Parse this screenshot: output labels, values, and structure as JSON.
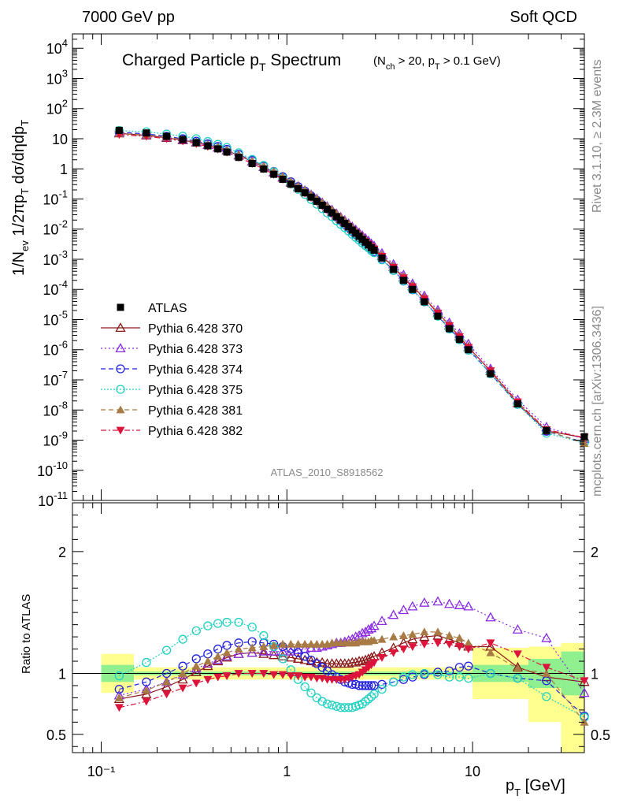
{
  "header": {
    "energy": "7000 GeV pp",
    "process": "Soft QCD",
    "rivet": "Rivet 3.1.10, ≥ 2.3M events",
    "site": "mcplots.cern.ch [arXiv:1306.3436]",
    "analysis": "ATLAS_2010_S8918562"
  },
  "chart_data": [
    {
      "type": "line",
      "title": "Charged Particle pT Spectrum",
      "subtitle": "(Nch > 20, pT > 0.1 GeV)",
      "ylabel": "1/Nev 1/2πpT dσ/dηdpT",
      "xscale": "log",
      "yscale": "log",
      "xlim": [
        0.07,
        40
      ],
      "ylim": [
        1e-11,
        30000
      ],
      "x": [
        0.125,
        0.175,
        0.225,
        0.275,
        0.325,
        0.375,
        0.425,
        0.475,
        0.55,
        0.65,
        0.75,
        0.85,
        0.95,
        1.05,
        1.15,
        1.25,
        1.35,
        1.45,
        1.55,
        1.65,
        1.75,
        1.85,
        1.95,
        2.05,
        2.15,
        2.25,
        2.35,
        2.45,
        2.55,
        2.65,
        2.75,
        2.85,
        2.95,
        3.25,
        3.75,
        4.25,
        4.75,
        5.5,
        6.5,
        7.5,
        8.5,
        9.5,
        12.5,
        17.5,
        25,
        40
      ],
      "series": [
        {
          "name": "ATLAS",
          "color": "#000000",
          "marker": "square",
          "values": [
            19,
            15.5,
            12,
            9.4,
            7.4,
            5.8,
            4.6,
            3.6,
            2.4,
            1.5,
            0.99,
            0.66,
            0.45,
            0.31,
            0.22,
            0.16,
            0.115,
            0.084,
            0.062,
            0.046,
            0.035,
            0.026,
            0.02,
            0.0155,
            0.012,
            0.0093,
            0.0073,
            0.0058,
            0.0046,
            0.0037,
            0.003,
            0.0024,
            0.002,
            0.0011,
            0.00046,
            0.0002,
            0.0001,
            3.9e-05,
            1.3e-05,
            5e-06,
            2.2e-06,
            1e-06,
            1.6e-07,
            1.6e-08,
            2.1e-09,
            1.3e-09
          ]
        },
        {
          "name": "Pythia 6.428 370",
          "color": "#8b1a1a",
          "marker": "triangle-open",
          "dash": "",
          "ratio": [
            0.79,
            0.83,
            0.89,
            0.95,
            1.01,
            1.06,
            1.1,
            1.13,
            1.16,
            1.17,
            1.16,
            1.15,
            1.14,
            1.13,
            1.12,
            1.11,
            1.1,
            1.09,
            1.09,
            1.08,
            1.08,
            1.08,
            1.08,
            1.08,
            1.08,
            1.09,
            1.09,
            1.1,
            1.1,
            1.11,
            1.12,
            1.13,
            1.14,
            1.17,
            1.21,
            1.25,
            1.28,
            1.3,
            1.31,
            1.28,
            1.25,
            1.22,
            1.22,
            1.05,
            0.97,
            0.93
          ]
        },
        {
          "name": "Pythia 6.428 373",
          "color": "#8a2be2",
          "marker": "triangle-open",
          "dash": "2,3",
          "ratio": [
            0.82,
            0.87,
            0.93,
            0.99,
            1.04,
            1.08,
            1.11,
            1.14,
            1.16,
            1.17,
            1.18,
            1.18,
            1.18,
            1.18,
            1.19,
            1.2,
            1.21,
            1.21,
            1.22,
            1.23,
            1.24,
            1.25,
            1.25,
            1.26,
            1.27,
            1.28,
            1.3,
            1.31,
            1.33,
            1.34,
            1.36,
            1.37,
            1.39,
            1.43,
            1.48,
            1.52,
            1.55,
            1.58,
            1.59,
            1.57,
            1.56,
            1.55,
            1.46,
            1.36,
            1.29,
            0.84
          ]
        },
        {
          "name": "Pythia 6.428 374",
          "color": "#2222dd",
          "marker": "circle-open",
          "dash": "6,4",
          "ratio": [
            0.87,
            0.93,
            1.0,
            1.06,
            1.12,
            1.16,
            1.2,
            1.23,
            1.25,
            1.26,
            1.25,
            1.24,
            1.22,
            1.2,
            1.17,
            1.14,
            1.11,
            1.08,
            1.05,
            1.02,
            0.99,
            0.97,
            0.95,
            0.93,
            0.92,
            0.91,
            0.91,
            0.9,
            0.9,
            0.9,
            0.9,
            0.9,
            0.9,
            0.91,
            0.93,
            0.95,
            0.97,
            0.99,
            1.01,
            1.02,
            1.05,
            1.06,
            1.0,
            0.96,
            0.94,
            0.65
          ]
        },
        {
          "name": "Pythia 6.428 375",
          "color": "#20d0c0",
          "marker": "circle-open",
          "dash": "2,2",
          "ratio": [
            0.98,
            1.09,
            1.19,
            1.28,
            1.35,
            1.39,
            1.41,
            1.42,
            1.42,
            1.38,
            1.31,
            1.22,
            1.12,
            1.03,
            0.95,
            0.89,
            0.84,
            0.8,
            0.77,
            0.75,
            0.74,
            0.73,
            0.72,
            0.72,
            0.72,
            0.72,
            0.73,
            0.74,
            0.75,
            0.77,
            0.79,
            0.81,
            0.83,
            0.87,
            0.93,
            0.97,
            0.99,
            1.0,
            0.99,
            0.97,
            0.97,
            0.96,
            1.0,
            0.96,
            0.81,
            0.64
          ]
        },
        {
          "name": "Pythia 6.428 381",
          "color": "#a87a44",
          "marker": "triangle-filled",
          "dash": "6,4",
          "ratio": [
            0.8,
            0.86,
            0.93,
            1.0,
            1.06,
            1.1,
            1.14,
            1.17,
            1.2,
            1.21,
            1.22,
            1.23,
            1.24,
            1.24,
            1.24,
            1.24,
            1.24,
            1.24,
            1.24,
            1.24,
            1.25,
            1.25,
            1.25,
            1.25,
            1.25,
            1.25,
            1.25,
            1.26,
            1.26,
            1.26,
            1.26,
            1.27,
            1.27,
            1.28,
            1.3,
            1.31,
            1.32,
            1.34,
            1.34,
            1.31,
            1.29,
            1.25,
            1.17,
            1.04,
            1.0,
            0.6
          ]
        },
        {
          "name": "Pythia 6.428 382",
          "color": "#dc143c",
          "marker": "triangle-down-filled",
          "dash": "7,3,2,3",
          "ratio": [
            0.72,
            0.77,
            0.83,
            0.88,
            0.92,
            0.95,
            0.97,
            0.98,
            1.0,
            1.0,
            1.0,
            0.99,
            0.99,
            0.98,
            0.98,
            0.97,
            0.97,
            0.96,
            0.96,
            0.95,
            0.95,
            0.95,
            0.95,
            0.95,
            0.96,
            0.97,
            0.98,
            0.99,
            1.01,
            1.03,
            1.05,
            1.07,
            1.09,
            1.13,
            1.17,
            1.2,
            1.22,
            1.24,
            1.25,
            1.24,
            1.22,
            1.2,
            1.25,
            1.16,
            1.05,
            0.94
          ]
        }
      ]
    },
    {
      "type": "line",
      "ylabel": "Ratio to ATLAS",
      "xlabel": "pT  [GeV]",
      "xscale": "log",
      "xlim": [
        0.07,
        40
      ],
      "ylim": [
        0.35,
        2.4
      ],
      "yticks": [
        "0.5",
        "1",
        "2"
      ],
      "xticks": [
        "10⁻¹",
        "1",
        "10"
      ],
      "reference": 1.0,
      "bands": [
        {
          "x": [
            0.1,
            0.15
          ],
          "stat": [
            0.93,
            1.07
          ],
          "total": [
            0.84,
            1.16
          ]
        },
        {
          "x": [
            0.15,
            10
          ],
          "stat": [
            0.985,
            1.015
          ],
          "total": [
            0.95,
            1.05
          ]
        },
        {
          "x": [
            10,
            20
          ],
          "stat": [
            0.93,
            1.07
          ],
          "total": [
            0.79,
            1.21
          ]
        },
        {
          "x": [
            20,
            30
          ],
          "stat": [
            0.88,
            1.12
          ],
          "total": [
            0.6,
            1.22
          ]
        },
        {
          "x": [
            30,
            50
          ],
          "stat": [
            0.82,
            1.18
          ],
          "total": [
            0.35,
            1.25
          ]
        }
      ]
    }
  ]
}
